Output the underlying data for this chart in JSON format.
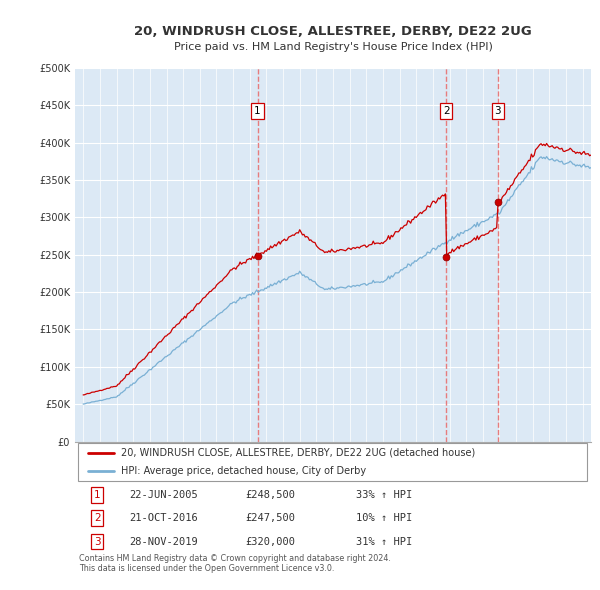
{
  "title": "20, WINDRUSH CLOSE, ALLESTREE, DERBY, DE22 2UG",
  "subtitle": "Price paid vs. HM Land Registry's House Price Index (HPI)",
  "plot_bg_color": "#dce9f5",
  "ylim": [
    0,
    500000
  ],
  "yticks": [
    0,
    50000,
    100000,
    150000,
    200000,
    250000,
    300000,
    350000,
    400000,
    450000,
    500000
  ],
  "ytick_labels": [
    "£0",
    "£50K",
    "£100K",
    "£150K",
    "£200K",
    "£250K",
    "£300K",
    "£350K",
    "£400K",
    "£450K",
    "£500K"
  ],
  "xlim_start": 1994.5,
  "xlim_end": 2025.5,
  "xticks": [
    1995,
    1996,
    1997,
    1998,
    1999,
    2000,
    2001,
    2002,
    2003,
    2004,
    2005,
    2006,
    2007,
    2008,
    2009,
    2010,
    2011,
    2012,
    2013,
    2014,
    2015,
    2016,
    2017,
    2018,
    2019,
    2020,
    2021,
    2022,
    2023,
    2024,
    2025
  ],
  "sale_dates": [
    2005.47,
    2016.8,
    2019.91
  ],
  "sale_prices": [
    248500,
    247500,
    320000
  ],
  "sale_labels": [
    "1",
    "2",
    "3"
  ],
  "red_line_color": "#cc0000",
  "hpi_line_color": "#7ab0d4",
  "vline_color": "#e87070",
  "legend_entries": [
    "20, WINDRUSH CLOSE, ALLESTREE, DERBY, DE22 2UG (detached house)",
    "HPI: Average price, detached house, City of Derby"
  ],
  "table_rows": [
    [
      "1",
      "22-JUN-2005",
      "£248,500",
      "33% ↑ HPI"
    ],
    [
      "2",
      "21-OCT-2016",
      "£247,500",
      "10% ↑ HPI"
    ],
    [
      "3",
      "28-NOV-2019",
      "£320,000",
      "31% ↑ HPI"
    ]
  ],
  "footer_text": "Contains HM Land Registry data © Crown copyright and database right 2024.\nThis data is licensed under the Open Government Licence v3.0."
}
